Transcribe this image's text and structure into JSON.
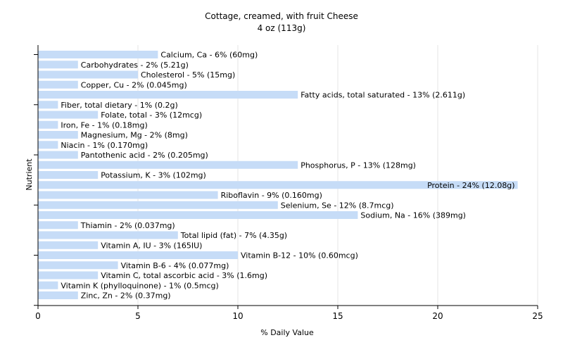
{
  "chart_data": {
    "type": "bar",
    "orientation": "horizontal",
    "title": "Cottage, creamed, with fruit Cheese",
    "subtitle": "4 oz (113g)",
    "xlabel": "% Daily Value",
    "ylabel": "Nutrient",
    "xlim": [
      0,
      25
    ],
    "xticks": [
      "0",
      "5",
      "10",
      "15",
      "20",
      "25"
    ],
    "grid": true,
    "bar_color": "#c6dcf7",
    "categories": [
      "Calcium, Ca",
      "Carbohydrates",
      "Cholesterol",
      "Copper, Cu",
      "Fatty acids, total saturated",
      "Fiber, total dietary",
      "Folate, total",
      "Iron, Fe",
      "Magnesium, Mg",
      "Niacin",
      "Pantothenic acid",
      "Phosphorus, P",
      "Potassium, K",
      "Protein",
      "Riboflavin",
      "Selenium, Se",
      "Sodium, Na",
      "Thiamin",
      "Total lipid (fat)",
      "Vitamin A, IU",
      "Vitamin B-12",
      "Vitamin B-6",
      "Vitamin C, total ascorbic acid",
      "Vitamin K (phylloquinone)",
      "Zinc, Zn"
    ],
    "values": [
      6,
      2,
      5,
      2,
      13,
      1,
      3,
      1,
      2,
      1,
      2,
      13,
      3,
      24,
      9,
      12,
      16,
      2,
      7,
      3,
      10,
      4,
      3,
      1,
      2
    ],
    "labels": [
      "Calcium, Ca - 6% (60mg)",
      "Carbohydrates - 2% (5.21g)",
      "Cholesterol - 5% (15mg)",
      "Copper, Cu - 2% (0.045mg)",
      "Fatty acids, total saturated - 13% (2.611g)",
      "Fiber, total dietary - 1% (0.2g)",
      "Folate, total - 3% (12mcg)",
      "Iron, Fe - 1% (0.18mg)",
      "Magnesium, Mg - 2% (8mg)",
      "Niacin - 1% (0.170mg)",
      "Pantothenic acid - 2% (0.205mg)",
      "Phosphorus, P - 13% (128mg)",
      "Potassium, K - 3% (102mg)",
      "Protein - 24% (12.08g)",
      "Riboflavin - 9% (0.160mg)",
      "Selenium, Se - 12% (8.7mcg)",
      "Sodium, Na - 16% (389mg)",
      "Thiamin - 2% (0.037mg)",
      "Total lipid (fat) - 7% (4.35g)",
      "Vitamin A, IU - 3% (165IU)",
      "Vitamin B-12 - 10% (0.60mcg)",
      "Vitamin B-6 - 4% (0.077mg)",
      "Vitamin C, total ascorbic acid - 3% (1.6mg)",
      "Vitamin K (phylloquinone) - 1% (0.5mcg)",
      "Zinc, Zn - 2% (0.37mg)"
    ]
  }
}
